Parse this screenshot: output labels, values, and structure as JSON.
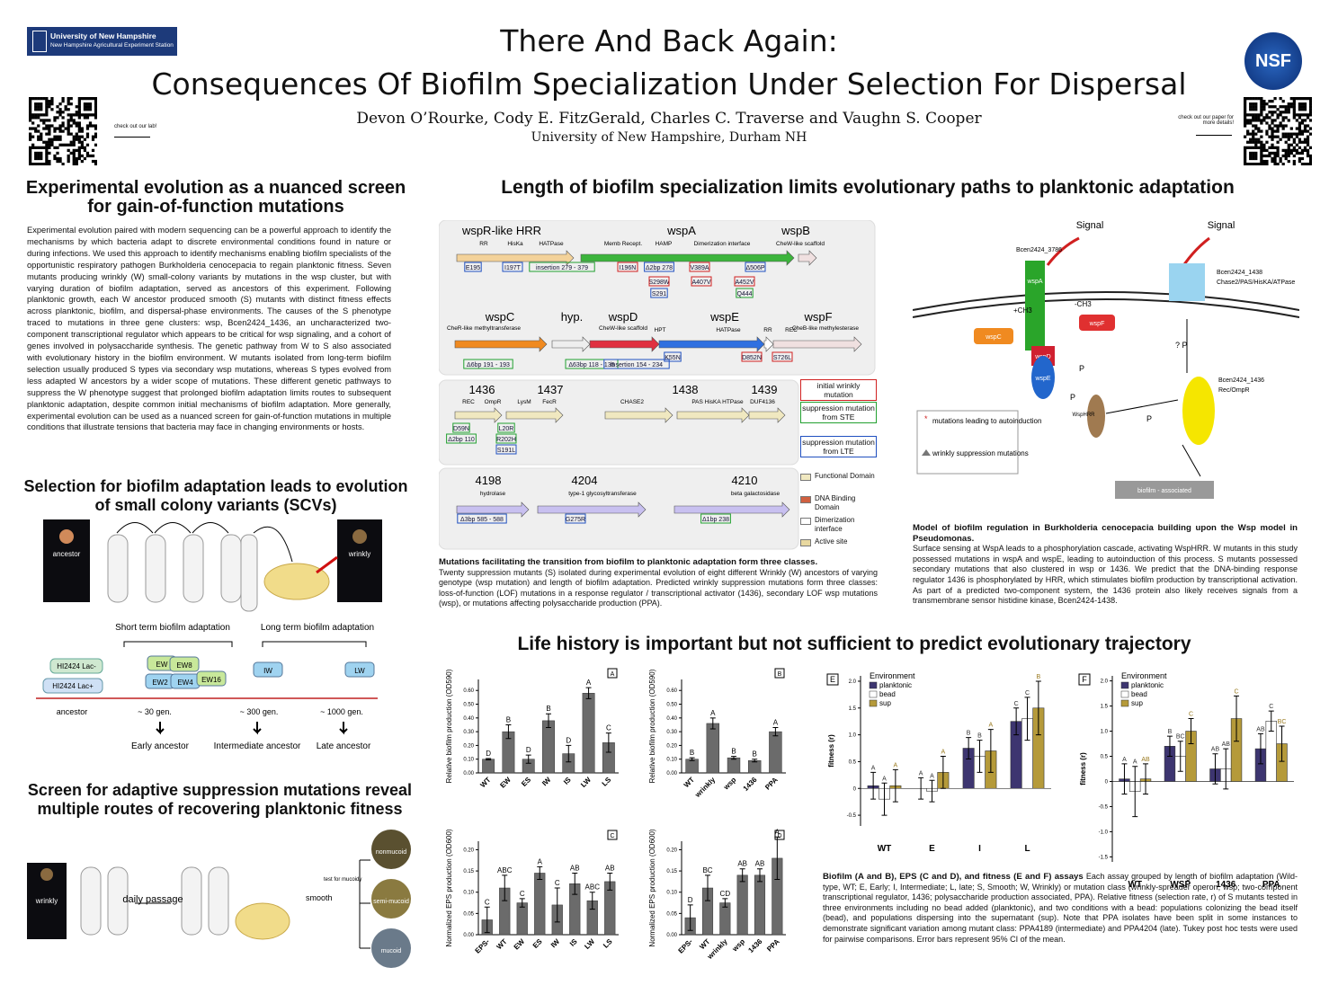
{
  "header": {
    "logo": "University of New Hampshire",
    "logo_sub": "New Hampshire Agricultural Experiment Station",
    "title_1": "There And Back Again:",
    "title_2": "Consequences Of Biofilm Specialization Under Selection For Dispersal",
    "authors": "Devon O’Rourke, Cody E. FitzGerald, Charles C. Traverse and Vaughn S. Cooper",
    "affiliation": "University of New Hampshire, Durham NH",
    "lab_link": "check out our lab!",
    "paper_link": "check out our paper for more details!",
    "nsf": "NSF"
  },
  "intro": {
    "heading": "Experimental evolution as a nuanced screen for gain-of-function mutations",
    "body": "Experimental evolution paired with modern sequencing can be a powerful approach to identify the mechanisms by which bacteria adapt to discrete environmental conditions found in nature or during infections. We used this approach to identify mechanisms enabling biofilm specialists of the opportunistic respiratory pathogen Burkholderia cenocepacia to regain planktonic fitness. Seven mutants producing wrinkly (W) small-colony variants by mutations in the wsp cluster, but with varying duration of biofilm adaptation, served as ancestors of this experiment. Following planktonic growth, each W ancestor produced smooth (S) mutants with distinct fitness effects across planktonic, biofilm, and dispersal-phase environments. The causes of the S phenotype traced to mutations in three gene clusters: wsp, Bcen2424_1436, an uncharacterized two-component transcriptional regulator which appears to be critical for wsp signaling, and a cohort of genes involved in polysaccharide synthesis. The genetic pathway from W to S also associated with evolutionary history in the biofilm environment. W mutants isolated from long-term biofilm selection usually produced S types via secondary wsp mutations, whereas S types evolved from less adapted W ancestors by a wider scope of mutations. These different genetic pathways to suppress the W phenotype suggest that prolonged biofilm adaptation limits routes to subsequent planktonic adaptation, despite common initial mechanisms of biofilm adaptation. More generally, experimental evolution can be used as a nuanced screen for gain-of-function mutations in multiple conditions that illustrate tensions that bacteria may face in changing environments or hosts."
  },
  "scv": {
    "heading": "Selection for biofilm adaptation leads to evolution of small colony variants (SCVs)",
    "photo_1": "ancestor",
    "photo_2": "wrinkly",
    "short_term": "Short term biofilm adaptation",
    "long_term": "Long term biofilm adaptation",
    "strain_1": "HI2424 Lac-",
    "strain_2": "HI2424 Lac+",
    "pops": [
      "EW",
      "EW2",
      "EW8",
      "EW4",
      "EW16",
      "IW",
      "LW"
    ],
    "generations": [
      "ancestor",
      "~ 30 gen.",
      "~ 300 gen.",
      "~ 1000 gen."
    ],
    "stages": [
      "Early ancestor",
      "Intermediate ancestor",
      "Late ancestor"
    ]
  },
  "screen": {
    "heading": "Screen for adaptive suppression mutations reveal multiple routes of recovering planktonic fitness",
    "photo": "wrinkly",
    "passage": "daily passage",
    "smooth": "smooth",
    "test": "test for mucoidy",
    "morphs": [
      "nonmucoid",
      "semi-mucoid",
      "mucoid"
    ]
  },
  "genes": {
    "heading": "Length of biofilm specialization limits evolutionary paths to planktonic adaptation",
    "labels": [
      "wspR-like HRR",
      "wspA",
      "wspB",
      "wspC",
      "hyp.",
      "wspD",
      "wspE",
      "wspF",
      "1436",
      "1437",
      "1438",
      "1439",
      "4198",
      "4204",
      "4210"
    ],
    "domains": [
      "RR",
      "HisKa",
      "HATPase",
      "Memb Recept.",
      "HAMP",
      "Dimerization interface",
      "CheW-like scaffold",
      "CheR-like methyltransferase",
      "CheW-like scaffold",
      "HPT",
      "HATPase",
      "RR",
      "REC",
      "CheB-like methylesterase",
      "REC",
      "OmpR",
      "LysM",
      "FecR",
      "CHASE2",
      "PAS HisKA HTPase",
      "DUF4136",
      "hydrolase",
      "type-1 glycosyltransferase",
      "beta galactosidase"
    ],
    "mutations": [
      "E195",
      "I197T",
      "insertion 279 - 379",
      "I196N",
      "Δ2bp 278",
      "V389A",
      "Δ506P",
      "S298W",
      "A407V",
      "A452V",
      "S291",
      "Q444",
      "Δ6bp 191 - 193",
      "Δ63bp 118 - 135",
      "insertion 154 - 234",
      "K55N",
      "D852N",
      "S726L",
      "D59N",
      "L20R",
      "Δ2bp 110",
      "R202H",
      "S191L",
      "Δ3bp 585 - 588",
      "G275R",
      "Δ1bp 238"
    ],
    "legend": [
      "initial wrinkly mutation",
      "suppression mutation from STE",
      "suppression mutation from LTE",
      "Functional Domain",
      "DNA Binding Domain",
      "Dimerization interface",
      "Active site"
    ],
    "caption_title": "Mutations facilitating the transition from biofilm to planktonic adaptation form three classes.",
    "caption_body": "Twenty suppression mutants (S) isolated during experimental evolution of eight different Wrinkly (W) ancestors of varying genotype (wsp mutation) and length of biofilm adaptation. Predicted wrinkly suppression mutations form three classes: loss-of-function (LOF) mutations in a response regulator / transcriptional activator (1436), secondary LOF wsp mutations (wsp), or mutations affecting polysaccharide production (PPA)."
  },
  "model": {
    "signal_1": "Signal",
    "signal_2": "Signal",
    "sensor": "Bcen2424_3786",
    "wspA": "wspA",
    "wspC": "wspC",
    "wspF": "wspF",
    "wspD": "wspD",
    "wspE": "wspE",
    "hrr": "WspHRR",
    "methyl_add": "+CH3",
    "methyl_remove": "-CH3",
    "kinase": "Bcen2424_1438",
    "kinase_domains": "Chase2/PAS/HisKA/ATPase",
    "regulator": "Bcen2424_1436",
    "regulator_domains": "Rec/OmpR",
    "phospho": [
      "P",
      "P",
      "P",
      "? P"
    ],
    "output": "biofilm - associated",
    "legend_1": "mutations leading to autoinduction",
    "legend_2": "wrinkly suppression mutations",
    "caption_title": "Model of biofilm regulation in Burkholderia cenocepacia building upon the Wsp model in Pseudomonas.",
    "caption_body": "Surface sensing at WspA leads to a phosphorylation cascade, activating WspHRR. W mutants in this study possessed mutations in wspA and wspE, leading to autoinduction of this process. S mutants possessed secondary mutations that also clustered in wsp or 1436. We predict that the DNA-binding response regulator 1436 is phosphorylated by HRR, which stimulates biofilm production by transcriptional activation. As part of a predicted two-component system, the 1436 protein also likely receives signals from a transmembrane sensor histidine kinase, Bcen2424-1438."
  },
  "life": {
    "heading": "Life history is important but not sufficient to predict evolutionary trajectory",
    "caption_title": "Biofilm (A and B), EPS (C and D), and fitness (E and F) assays",
    "caption_body": "Each assay grouped by length of biofilm adaptation (Wild-type, WT; E, Early; I, Intermediate; L, late; S, Smooth; W, Wrinkly) or mutation class (wrinkly-spreader operon, wsp; two-component transcriptional regulator, 1436; polysaccharide production associated, PPA). Relative fitness (selection rate, r) of S mutants tested in three environments including no bead added (planktonic), and two conditions with a bead: populations colonizing the bead itself (bead), and populations dispersing into the supernatant (sup). Note that PPA isolates have been split in some instances to demonstrate significant variation among mutant class: PPA4189 (intermediate) and PPA4204 (late). Tukey post hoc tests were used for pairwise comparisons. Error bars represent 95% CI of the mean."
  },
  "charts": [
    {
      "type": "bar",
      "panel": "A",
      "ylabel": "Relative biofilm production (OD590)",
      "color": "#6b6b6b",
      "categories": [
        "WT",
        "EW",
        "ES",
        "IW",
        "IS",
        "LW",
        "LS"
      ],
      "values": [
        0.1,
        0.3,
        0.1,
        0.38,
        0.14,
        0.58,
        0.22
      ],
      "errors": [
        0.005,
        0.05,
        0.03,
        0.05,
        0.06,
        0.04,
        0.07
      ],
      "letters": [
        "D",
        "B",
        "D",
        "B",
        "D",
        "A",
        "C"
      ],
      "ylim": [
        0,
        0.68
      ],
      "yticks": [
        {
          "value": 0,
          "label": "0.00"
        },
        {
          "value": 0.1,
          "label": "0.10"
        },
        {
          "value": 0.2,
          "label": "0.20"
        },
        {
          "value": 0.3,
          "label": "0.30"
        },
        {
          "value": 0.4,
          "label": "0.40"
        },
        {
          "value": 0.5,
          "label": "0.50"
        },
        {
          "value": 0.6,
          "label": "0.60"
        }
      ]
    },
    {
      "type": "bar",
      "panel": "B",
      "ylabel": "Relative biofilm production (OD590)",
      "color": "#6b6b6b",
      "categories": [
        "WT",
        "wrinkly",
        "wsp",
        "1436",
        "PPA"
      ],
      "values": [
        0.1,
        0.36,
        0.11,
        0.09,
        0.3
      ],
      "errors": [
        0.01,
        0.04,
        0.01,
        0.01,
        0.03
      ],
      "letters": [
        "B",
        "A",
        "B",
        "B",
        "A"
      ],
      "ylim": [
        0,
        0.68
      ],
      "yticks": [
        {
          "value": 0,
          "label": "0.00"
        },
        {
          "value": 0.1,
          "label": "0.10"
        },
        {
          "value": 0.2,
          "label": "0.20"
        },
        {
          "value": 0.3,
          "label": "0.30"
        },
        {
          "value": 0.4,
          "label": "0.40"
        },
        {
          "value": 0.5,
          "label": "0.50"
        },
        {
          "value": 0.6,
          "label": "0.60"
        }
      ]
    },
    {
      "type": "bar",
      "panel": "C",
      "ylabel": "Normalized EPS production (OD600)",
      "color": "#6b6b6b",
      "categories": [
        "EPS-",
        "WT",
        "EW",
        "ES",
        "IW",
        "IS",
        "LW",
        "LS"
      ],
      "values": [
        0.035,
        0.11,
        0.075,
        0.145,
        0.07,
        0.12,
        0.08,
        0.125
      ],
      "errors": [
        0.03,
        0.03,
        0.01,
        0.015,
        0.04,
        0.025,
        0.02,
        0.02
      ],
      "letters": [
        "C",
        "ABC",
        "C",
        "A",
        "C",
        "AB",
        "ABC",
        "AB"
      ],
      "ylim": [
        0,
        0.22
      ],
      "yticks": [
        {
          "value": 0,
          "label": "0.00"
        },
        {
          "value": 0.05,
          "label": "0.05"
        },
        {
          "value": 0.1,
          "label": "0.10"
        },
        {
          "value": 0.15,
          "label": "0.15"
        },
        {
          "value": 0.2,
          "label": "0.20"
        }
      ]
    },
    {
      "type": "bar",
      "panel": "D",
      "ylabel": "Normalized EPS production (OD600)",
      "color": "#6b6b6b",
      "categories": [
        "EPS-",
        "WT",
        "wrinkly",
        "wsp",
        "1436",
        "PPA"
      ],
      "values": [
        0.04,
        0.11,
        0.075,
        0.14,
        0.14,
        0.18
      ],
      "errors": [
        0.03,
        0.03,
        0.01,
        0.015,
        0.015,
        0.05
      ],
      "letters": [
        "D",
        "BC",
        "CD",
        "AB",
        "AB",
        "A"
      ],
      "ylim": [
        0,
        0.22
      ],
      "yticks": [
        {
          "value": 0,
          "label": "0.00"
        },
        {
          "value": 0.05,
          "label": "0.05"
        },
        {
          "value": 0.1,
          "label": "0.10"
        },
        {
          "value": 0.15,
          "label": "0.15"
        },
        {
          "value": 0.2,
          "label": "0.20"
        }
      ]
    },
    {
      "type": "grouped_bar",
      "panel": "E",
      "ylabel": "fitness (r)",
      "legend_title": "Environment",
      "categories": [
        "WT",
        "E",
        "I",
        "L"
      ],
      "series": [
        {
          "name": "planktonic",
          "color": "#3d3570",
          "values": [
            0.05,
            0.0,
            0.75,
            1.25
          ],
          "errors": [
            0.25,
            0.2,
            0.2,
            0.25
          ],
          "letters": [
            "A",
            "A",
            "B",
            "C"
          ]
        },
        {
          "name": "bead",
          "color": "#ffffff",
          "values": [
            -0.2,
            -0.05,
            0.6,
            1.3
          ],
          "errors": [
            0.3,
            0.2,
            0.3,
            0.4
          ],
          "letters": [
            "A",
            "A",
            "B",
            "C"
          ]
        },
        {
          "name": "sup",
          "color": "#b59a3a",
          "values": [
            0.05,
            0.3,
            0.7,
            1.5
          ],
          "errors": [
            0.3,
            0.3,
            0.4,
            0.5
          ],
          "letters": [
            "A",
            "A",
            "A",
            "B"
          ]
        }
      ],
      "ylim": [
        -0.7,
        2.1
      ],
      "yticks": [
        -0.5,
        0,
        0.5,
        {
          "value": 1,
          "label": "1.0"
        },
        1.5,
        {
          "value": 2,
          "label": "2.0"
        }
      ]
    },
    {
      "type": "grouped_bar",
      "panel": "F",
      "ylabel": "fitness (r)",
      "legend_title": "Environment",
      "categories": [
        "WT",
        "WSP",
        "1436",
        "PPA"
      ],
      "series": [
        {
          "name": "planktonic",
          "color": "#3d3570",
          "values": [
            0.05,
            0.7,
            0.25,
            0.65
          ],
          "errors": [
            0.3,
            0.2,
            0.3,
            0.3
          ],
          "letters": [
            "A",
            "B",
            "AB",
            "AB"
          ]
        },
        {
          "name": "bead",
          "color": "#ffffff",
          "values": [
            -0.2,
            0.5,
            0.25,
            1.2
          ],
          "errors": [
            0.5,
            0.3,
            0.4,
            0.2
          ],
          "letters": [
            "A",
            "BC",
            "AB",
            "C"
          ]
        },
        {
          "name": "sup",
          "color": "#b59a3a",
          "values": [
            0.05,
            1.0,
            1.25,
            0.75
          ],
          "errors": [
            0.3,
            0.25,
            0.45,
            0.35
          ],
          "letters": [
            "AB",
            "C",
            "C",
            "BC"
          ]
        }
      ],
      "ylim": [
        -1.6,
        2.1
      ],
      "yticks": [
        -1.5,
        {
          "value": -1,
          "label": "-1.0"
        },
        -0.5,
        0,
        0.5,
        {
          "value": 1,
          "label": "1.0"
        },
        1.5,
        {
          "value": 2,
          "label": "2.0"
        }
      ]
    }
  ]
}
